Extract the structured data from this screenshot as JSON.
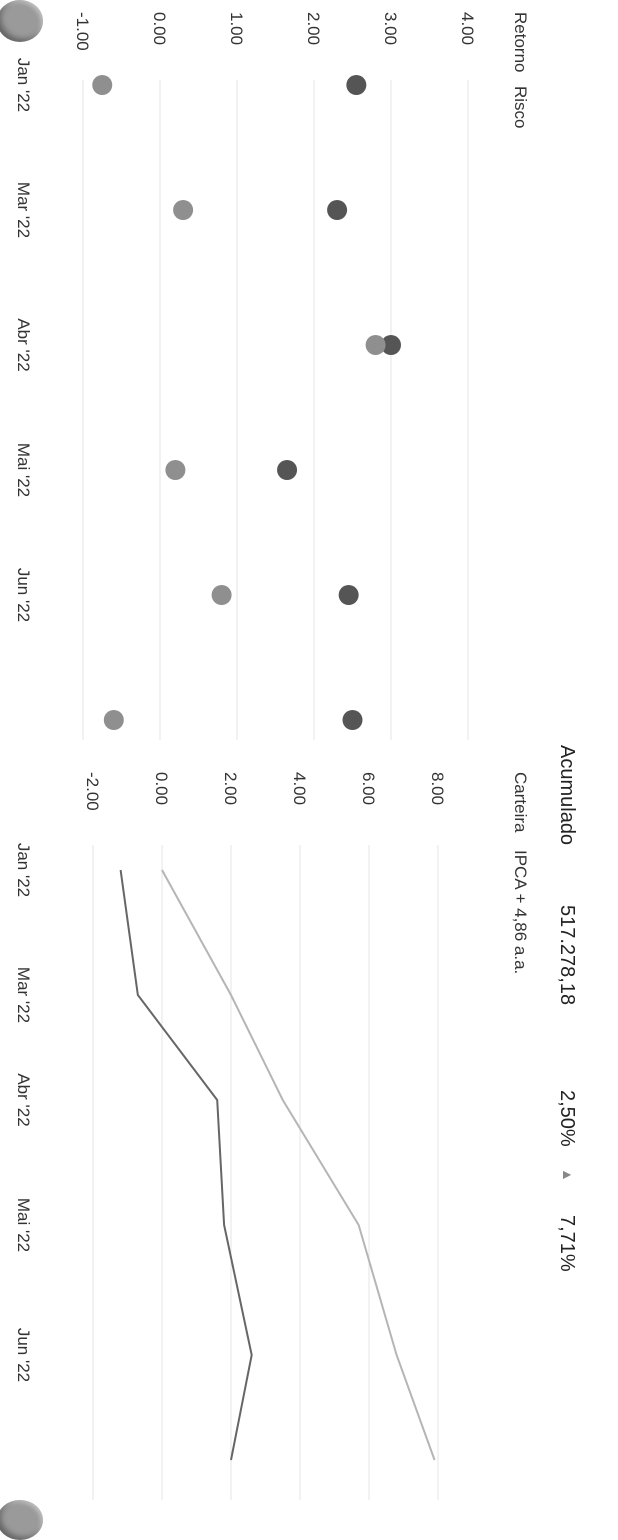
{
  "summary": {
    "label": "Acumulado",
    "value": "517.278,18",
    "pct1": "2,50%",
    "arrow": "▲",
    "pct2": "7,71%"
  },
  "chart_data": [
    {
      "type": "scatter",
      "title": "",
      "legend": [
        "Retorno",
        "Risco"
      ],
      "categories": [
        "Jan '22",
        "Mar '22",
        "Abr '22",
        "Mai '22",
        "Jun '22",
        ""
      ],
      "yticks": [
        "4.00",
        "3.00",
        "2.00",
        "1.00",
        "0.00",
        "-1.00"
      ],
      "ylim": [
        -1.0,
        4.0
      ],
      "series": [
        {
          "name": "Retorno",
          "color": "#555555",
          "values": [
            2.55,
            2.3,
            3.0,
            1.65,
            2.45,
            2.5
          ]
        },
        {
          "name": "Risco",
          "color": "#8f8f8f",
          "values": [
            -0.75,
            0.3,
            2.8,
            0.2,
            0.8,
            -0.6
          ]
        }
      ]
    },
    {
      "type": "line",
      "title": "",
      "legend": [
        "Carteira",
        "IPCA + 4,86 a.a."
      ],
      "categories": [
        "Jan '22",
        "Mar '22",
        "Abr '22",
        "Mai '22",
        "Jun '22",
        ""
      ],
      "yticks": [
        "8.00",
        "6.00",
        "4.00",
        "2.00",
        "0.00",
        "-2.00"
      ],
      "ylim": [
        -2.0,
        8.0
      ],
      "series": [
        {
          "name": "Carteira",
          "color": "#666666",
          "values": [
            -1.2,
            -0.7,
            1.6,
            1.8,
            2.6,
            2.0
          ]
        },
        {
          "name": "IPCA + 4,86 a.a.",
          "color": "#b5b5b5",
          "values": [
            0.0,
            2.0,
            3.5,
            5.7,
            6.8,
            7.9
          ]
        }
      ]
    }
  ]
}
